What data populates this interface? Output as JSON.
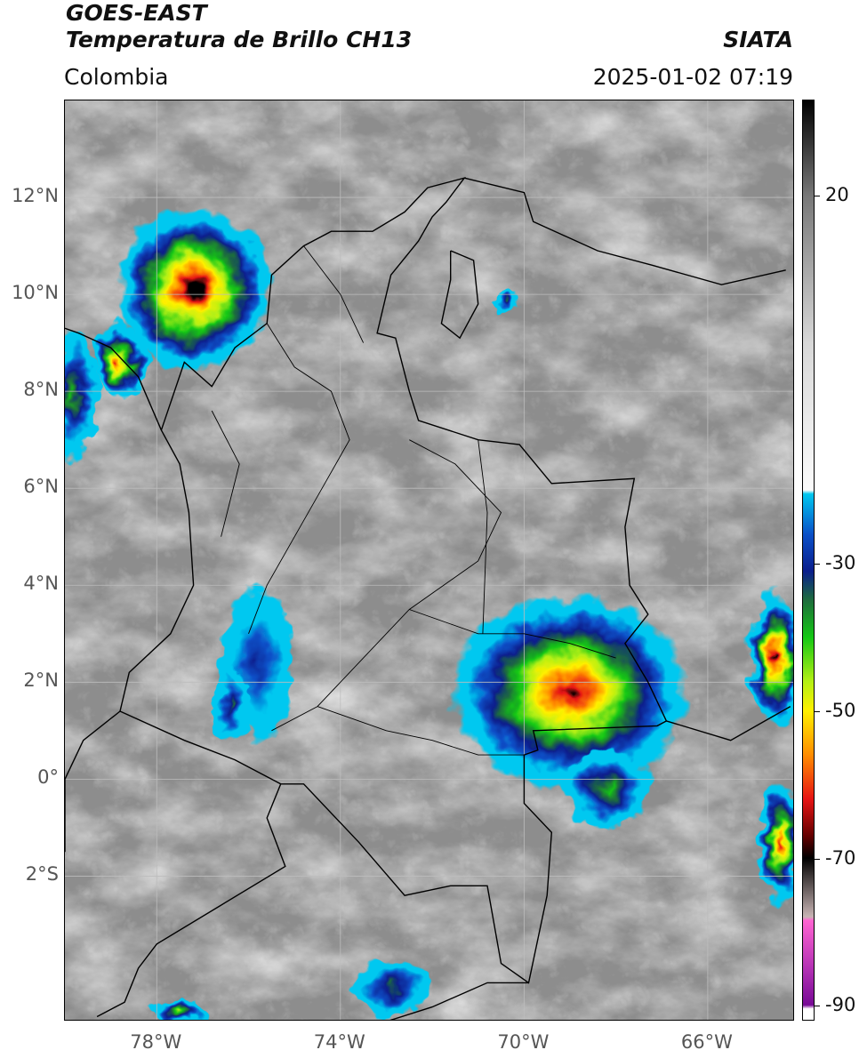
{
  "header": {
    "title1": "GOES-EAST",
    "title2": "Temperatura de Brillo CH13",
    "region": "Colombia",
    "agency": "SIATA",
    "datetime": "2025-01-02 07:19"
  },
  "map": {
    "lon_range": [
      -80,
      -64.1
    ],
    "lat_range": [
      -5.0,
      14.0
    ],
    "lat_ticks": [
      {
        "value": 12,
        "label": "12°N"
      },
      {
        "value": 10,
        "label": "10°N"
      },
      {
        "value": 8,
        "label": "8°N"
      },
      {
        "value": 6,
        "label": "6°N"
      },
      {
        "value": 4,
        "label": "4°N"
      },
      {
        "value": 2,
        "label": "2°N"
      },
      {
        "value": 0,
        "label": "0°"
      },
      {
        "value": -2,
        "label": "2°S"
      }
    ],
    "lon_ticks": [
      {
        "value": -78,
        "label": "78°W"
      },
      {
        "value": -74,
        "label": "74°W"
      },
      {
        "value": -70,
        "label": "70°W"
      },
      {
        "value": -66,
        "label": "66°W"
      }
    ],
    "grid": true,
    "storms": [
      {
        "name": "caribbean-cluster",
        "lon": -77.2,
        "lat": 10.1,
        "rx": 1.7,
        "ry": 1.7,
        "core": -75
      },
      {
        "name": "uraba-cell",
        "lon": -78.8,
        "lat": 8.6,
        "rx": 0.6,
        "ry": 0.8,
        "core": -65
      },
      {
        "name": "pacific-edge",
        "lon": -79.8,
        "lat": 7.9,
        "rx": 0.5,
        "ry": 1.4,
        "core": -45
      },
      {
        "name": "maracaibo-cell",
        "lon": -70.4,
        "lat": 9.9,
        "rx": 0.3,
        "ry": 0.3,
        "core": -40
      },
      {
        "name": "amazon-complex",
        "lon": -69.0,
        "lat": 1.8,
        "rx": 2.6,
        "ry": 2.0,
        "core": -72
      },
      {
        "name": "amazon-south",
        "lon": -68.2,
        "lat": -0.2,
        "rx": 1.0,
        "ry": 0.8,
        "core": -45
      },
      {
        "name": "eastern-cells",
        "lon": -64.5,
        "lat": 2.5,
        "rx": 0.6,
        "ry": 1.4,
        "core": -70
      },
      {
        "name": "eastern-south",
        "lon": -64.4,
        "lat": -1.3,
        "rx": 0.5,
        "ry": 1.3,
        "core": -65
      },
      {
        "name": "andes-line",
        "lon": -75.8,
        "lat": 2.4,
        "rx": 0.8,
        "ry": 1.6,
        "core": -35
      },
      {
        "name": "pacific-south",
        "lon": -76.4,
        "lat": 1.5,
        "rx": 0.4,
        "ry": 0.8,
        "core": -40
      },
      {
        "name": "peru-cluster",
        "lon": -72.9,
        "lat": -4.3,
        "rx": 0.9,
        "ry": 0.6,
        "core": -40
      },
      {
        "name": "south-west",
        "lon": -77.5,
        "lat": -4.8,
        "rx": 0.6,
        "ry": 0.3,
        "core": -50
      }
    ]
  },
  "colorbar": {
    "range": [
      -92,
      33
    ],
    "ticks": [
      {
        "value": 20,
        "label": "20"
      },
      {
        "value": -30,
        "label": "-30"
      },
      {
        "value": -50,
        "label": "-50"
      },
      {
        "value": -70,
        "label": "-70"
      },
      {
        "value": -90,
        "label": "-90"
      }
    ],
    "stops": [
      {
        "t": 33,
        "color": "#000000"
      },
      {
        "t": 20,
        "color": "#787878"
      },
      {
        "t": 0,
        "color": "#d8d8d8"
      },
      {
        "t": -20,
        "color": "#fbfbfb"
      },
      {
        "t": -20.5,
        "color": "#00c8f0"
      },
      {
        "t": -26,
        "color": "#0a50c8"
      },
      {
        "t": -31,
        "color": "#0a1e8c"
      },
      {
        "t": -35,
        "color": "#1e6e3c"
      },
      {
        "t": -40,
        "color": "#14c814"
      },
      {
        "t": -46,
        "color": "#b4f014"
      },
      {
        "t": -50,
        "color": "#fff000"
      },
      {
        "t": -56,
        "color": "#ff8c00"
      },
      {
        "t": -62,
        "color": "#e61414"
      },
      {
        "t": -67,
        "color": "#640000"
      },
      {
        "t": -70,
        "color": "#000000"
      },
      {
        "t": -78,
        "color": "#c8b4b4"
      },
      {
        "t": -78.5,
        "color": "#ff64d2"
      },
      {
        "t": -85,
        "color": "#b432b4"
      },
      {
        "t": -90,
        "color": "#780a96"
      },
      {
        "t": -90.5,
        "color": "#ffffff"
      },
      {
        "t": -92,
        "color": "#ffffff"
      }
    ]
  }
}
